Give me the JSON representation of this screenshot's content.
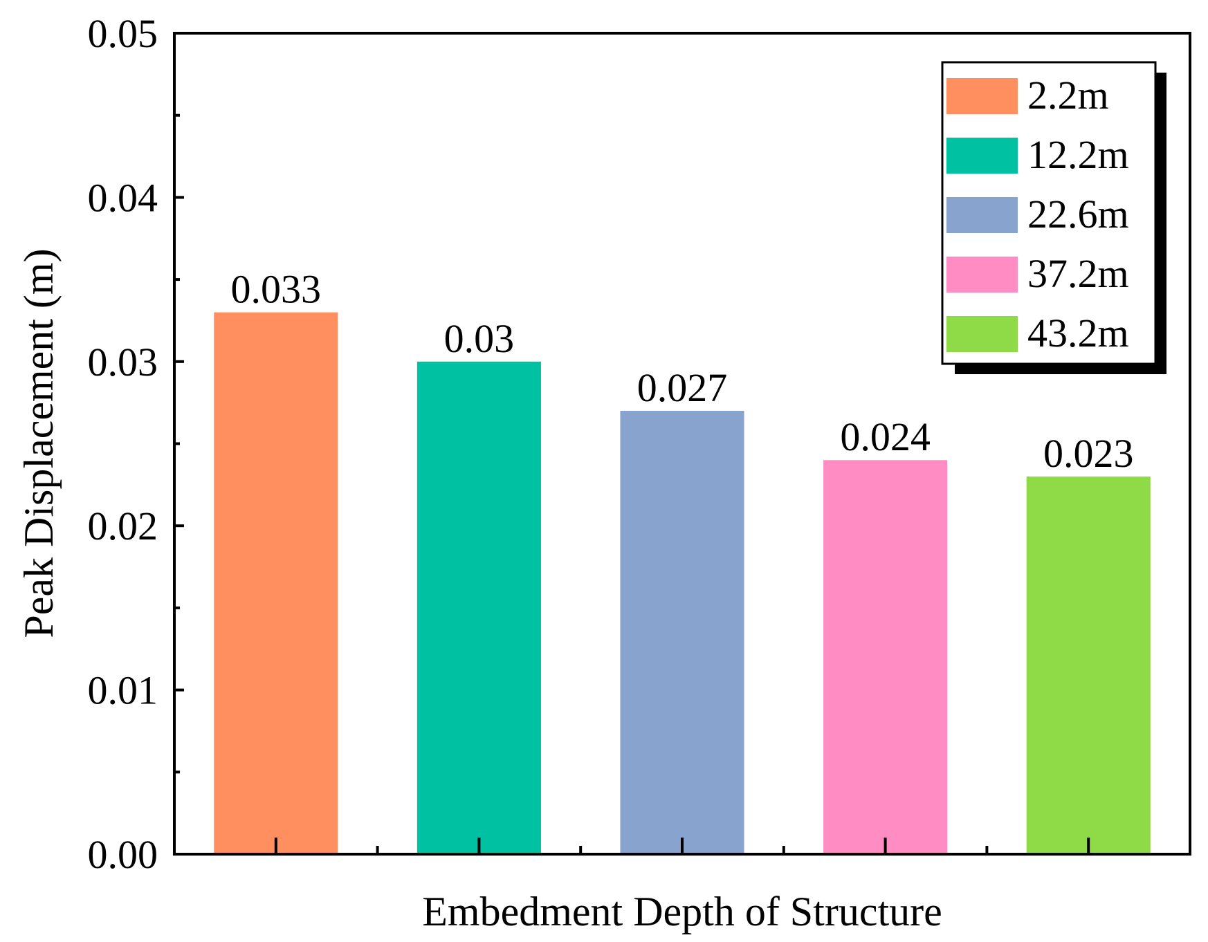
{
  "chart_data": {
    "type": "bar",
    "title": "",
    "xlabel": "Embedment Depth of Structure",
    "ylabel": "Peak Displacement (m)",
    "ylim": [
      0,
      0.05
    ],
    "yticks": [
      "0.00",
      "0.01",
      "0.02",
      "0.03",
      "0.04",
      "0.05"
    ],
    "ytick_values": [
      0,
      0.01,
      0.02,
      0.03,
      0.04,
      0.05
    ],
    "grid": false,
    "legend_position": "top-right",
    "series": [
      {
        "name": "2.2m",
        "value": 0.033,
        "label": "0.033",
        "color": "#FF8F5E"
      },
      {
        "name": "12.2m",
        "value": 0.03,
        "label": "0.03",
        "color": "#00C2A3"
      },
      {
        "name": "22.6m",
        "value": 0.027,
        "label": "0.027",
        "color": "#88A3CE"
      },
      {
        "name": "37.2m",
        "value": 0.024,
        "label": "0.024",
        "color": "#FF8CC3"
      },
      {
        "name": "43.2m",
        "value": 0.023,
        "label": "0.023",
        "color": "#8FDB47"
      }
    ]
  }
}
